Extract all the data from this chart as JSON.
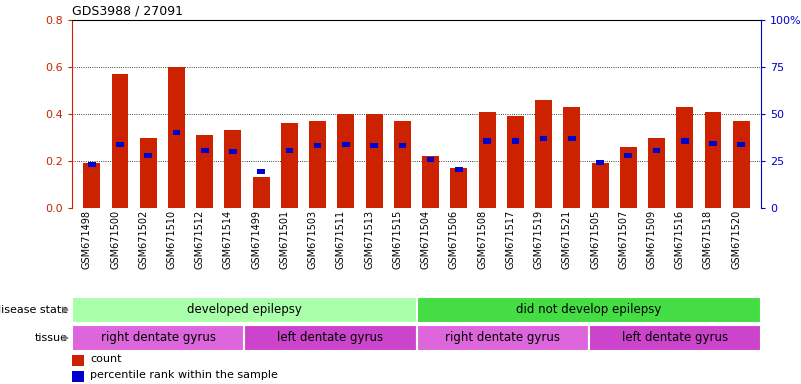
{
  "title": "GDS3988 / 27091",
  "samples": [
    "GSM671498",
    "GSM671500",
    "GSM671502",
    "GSM671510",
    "GSM671512",
    "GSM671514",
    "GSM671499",
    "GSM671501",
    "GSM671503",
    "GSM671511",
    "GSM671513",
    "GSM671515",
    "GSM671504",
    "GSM671506",
    "GSM671508",
    "GSM671517",
    "GSM671519",
    "GSM671521",
    "GSM671505",
    "GSM671507",
    "GSM671509",
    "GSM671516",
    "GSM671518",
    "GSM671520"
  ],
  "red_values": [
    0.19,
    0.57,
    0.3,
    0.6,
    0.31,
    0.33,
    0.13,
    0.36,
    0.37,
    0.4,
    0.4,
    0.37,
    0.22,
    0.17,
    0.41,
    0.39,
    0.46,
    0.43,
    0.19,
    0.26,
    0.3,
    0.43,
    0.41,
    0.37
  ],
  "blue_values": [
    0.185,
    0.27,
    0.225,
    0.32,
    0.245,
    0.24,
    0.155,
    0.245,
    0.265,
    0.27,
    0.265,
    0.265,
    0.205,
    0.165,
    0.285,
    0.285,
    0.295,
    0.295,
    0.195,
    0.225,
    0.245,
    0.285,
    0.275,
    0.27
  ],
  "red_color": "#cc2200",
  "blue_color": "#0000cc",
  "ylim_left": [
    0,
    0.8
  ],
  "ylim_right": [
    0,
    100
  ],
  "yticks_left": [
    0,
    0.2,
    0.4,
    0.6,
    0.8
  ],
  "yticks_right": [
    0,
    25,
    50,
    75,
    100
  ],
  "groups": [
    {
      "label": "developed epilepsy",
      "start": 0,
      "end": 12,
      "color": "#aaffaa"
    },
    {
      "label": "did not develop epilepsy",
      "start": 12,
      "end": 24,
      "color": "#44dd44"
    }
  ],
  "tissues": [
    {
      "label": "right dentate gyrus",
      "start": 0,
      "end": 6,
      "color": "#dd66dd"
    },
    {
      "label": "left dentate gyrus",
      "start": 6,
      "end": 12,
      "color": "#cc44cc"
    },
    {
      "label": "right dentate gyrus",
      "start": 12,
      "end": 18,
      "color": "#dd66dd"
    },
    {
      "label": "left dentate gyrus",
      "start": 18,
      "end": 24,
      "color": "#cc44cc"
    }
  ],
  "disease_state_label": "disease state",
  "tissue_label": "tissue",
  "legend_count": "count",
  "legend_percentile": "percentile rank within the sample",
  "bar_width": 0.6,
  "n_bars": 24,
  "xtick_bg": "#d0d0d0",
  "grid_color": "#000000",
  "top_spine_color": "#000000"
}
